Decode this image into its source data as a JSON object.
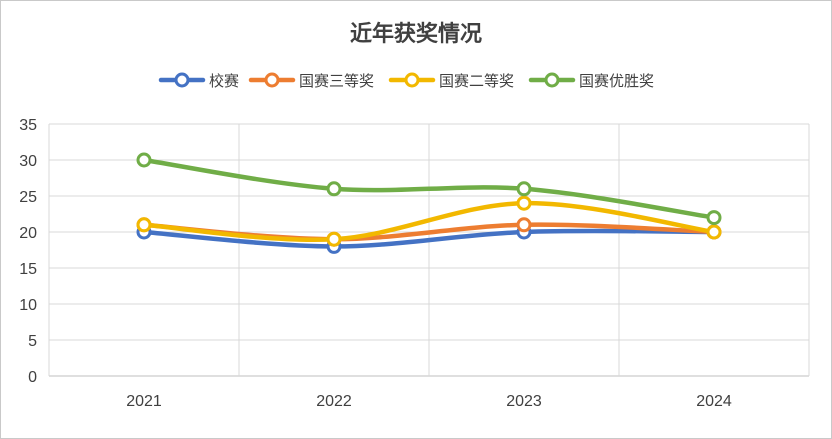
{
  "chart_data": {
    "type": "line",
    "title": "近年获奖情况",
    "categories": [
      "2021",
      "2022",
      "2023",
      "2024"
    ],
    "ylim": [
      0,
      35
    ],
    "yticks": [
      0,
      5,
      10,
      15,
      20,
      25,
      30,
      35
    ],
    "xlabel": "",
    "ylabel": "",
    "grid": true,
    "legend_position": "top",
    "smooth": true,
    "series": [
      {
        "name": "校赛",
        "values": [
          20,
          18,
          20,
          20
        ],
        "color": "#4472C4"
      },
      {
        "name": "国赛三等奖",
        "values": [
          21,
          19,
          21,
          20
        ],
        "color": "#ED7D31"
      },
      {
        "name": "国赛二等奖",
        "values": [
          21,
          19,
          24,
          20
        ],
        "color": "#F2B800"
      },
      {
        "name": "国赛优胜奖",
        "values": [
          30,
          26,
          26,
          22
        ],
        "color": "#70AD47"
      }
    ]
  }
}
